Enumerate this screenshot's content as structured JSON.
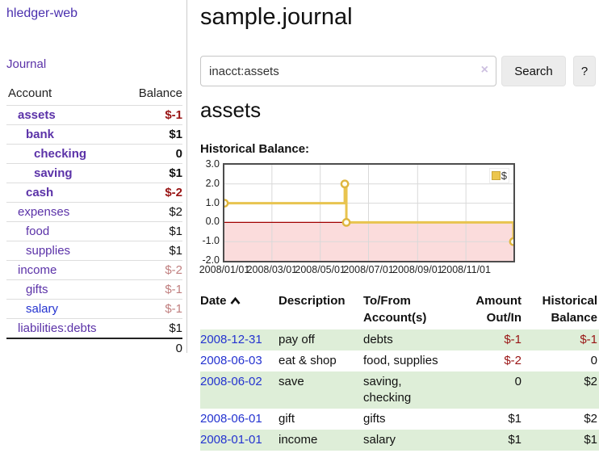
{
  "brand": "hledger-web",
  "nav": {
    "journal": "Journal"
  },
  "sidebar": {
    "headers": {
      "account": "Account",
      "balance": "Balance"
    },
    "accounts": [
      {
        "name": "assets",
        "balance": "$-1",
        "indent": 1,
        "bold": true
      },
      {
        "name": "bank",
        "balance": "$1",
        "indent": 2,
        "bold": true
      },
      {
        "name": "checking",
        "balance": "0",
        "indent": 3,
        "bold": true
      },
      {
        "name": "saving",
        "balance": "$1",
        "indent": 3,
        "bold": true
      },
      {
        "name": "cash",
        "balance": "$-2",
        "indent": 2,
        "bold": true
      },
      {
        "name": "expenses",
        "balance": "$2",
        "indent": 1,
        "bold": false
      },
      {
        "name": "food",
        "balance": "$1",
        "indent": 2,
        "bold": false
      },
      {
        "name": "supplies",
        "balance": "$1",
        "indent": 2,
        "bold": false
      },
      {
        "name": "income",
        "balance": "$-2",
        "indent": 1,
        "bold": false
      },
      {
        "name": "gifts",
        "balance": "$-1",
        "indent": 2,
        "bold": false
      },
      {
        "name": "salary",
        "balance": "$-1",
        "indent": 2,
        "bold": false,
        "blue": true
      },
      {
        "name": "liabilities:debts",
        "balance": "$1",
        "indent": 1,
        "bold": false
      }
    ],
    "total": "0"
  },
  "main": {
    "title": "sample.journal",
    "search": {
      "value": "inacct:assets",
      "clear": "×",
      "search_button": "Search",
      "help_button": "?"
    },
    "account_heading": "assets",
    "chart_title": "Historical Balance:"
  },
  "chart_data": {
    "type": "line",
    "step": true,
    "title": "Historical Balance",
    "series": [
      {
        "name": "$",
        "color": "#e8c44f",
        "points": [
          [
            "2008-01-01",
            1
          ],
          [
            "2008-06-01",
            2
          ],
          [
            "2008-06-03",
            0
          ],
          [
            "2008-12-31",
            -1
          ]
        ]
      }
    ],
    "x_range": [
      "2008-01-01",
      "2008-12-31"
    ],
    "ylim": [
      -2,
      3
    ],
    "yticks": [
      3.0,
      2.0,
      1.0,
      0.0,
      -1.0,
      -2.0
    ],
    "ytick_labels": [
      "3.0",
      "2.0",
      "1.0",
      "0.0",
      "-1.0",
      "-2.0"
    ],
    "xticks": [
      "2008/01/01",
      "2008/03/01",
      "2008/05/01",
      "2008/07/01",
      "2008/09/01",
      "2008/11/01"
    ],
    "legend": {
      "label": "$",
      "position": "top-right"
    },
    "grid": true,
    "negative_fill": "#fbdcdc",
    "zero_line_color": "#a00000"
  },
  "register": {
    "columns": [
      "Date",
      "Description",
      "To/From Account(s)",
      "Amount Out/In",
      "Historical Balance"
    ],
    "sort": {
      "column": "Date",
      "direction": "asc"
    },
    "rows": [
      {
        "date": "2008-12-31",
        "description": "pay off",
        "accounts": "debts",
        "amount": "$-1",
        "balance": "$-1",
        "shaded": true
      },
      {
        "date": "2008-06-03",
        "description": "eat & shop",
        "accounts": "food, supplies",
        "amount": "$-2",
        "balance": "0",
        "shaded": false
      },
      {
        "date": "2008-06-02",
        "description": "save",
        "accounts": "saving, checking",
        "amount": "0",
        "balance": "$2",
        "shaded": true
      },
      {
        "date": "2008-06-01",
        "description": "gift",
        "accounts": "gifts",
        "amount": "$1",
        "balance": "$2",
        "shaded": false
      },
      {
        "date": "2008-01-01",
        "description": "income",
        "accounts": "salary",
        "amount": "$1",
        "balance": "$1",
        "shaded": true
      }
    ]
  },
  "colors": {
    "link_purple": "#5b32a8",
    "link_blue": "#2433d0",
    "negative_strong": "#991414",
    "negative_soft": "#c07f7f",
    "row_stripe_green": "#deeed8",
    "series_gold": "#e8c44f",
    "negative_region_pink": "#fbdcdc",
    "zero_line_red": "#a00000"
  }
}
